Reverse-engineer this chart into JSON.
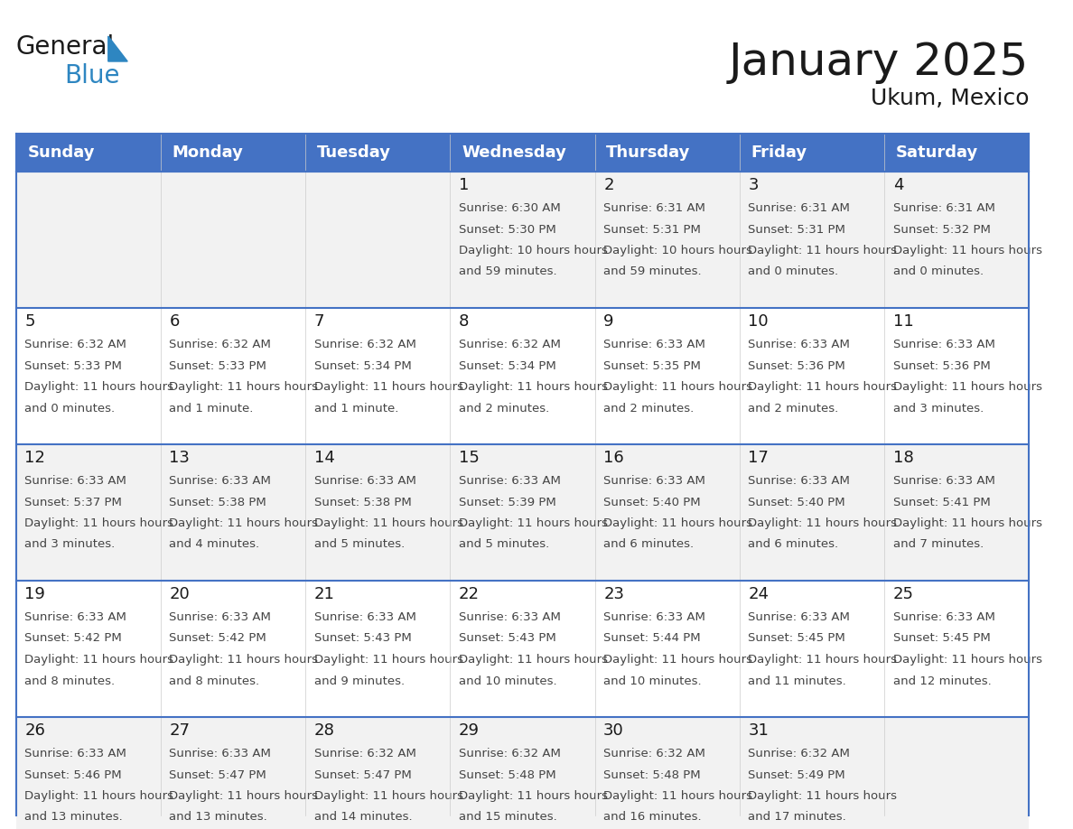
{
  "title": "January 2025",
  "subtitle": "Ukum, Mexico",
  "header_bg": "#4472C4",
  "header_text_color": "#FFFFFF",
  "days_of_week": [
    "Sunday",
    "Monday",
    "Tuesday",
    "Wednesday",
    "Thursday",
    "Friday",
    "Saturday"
  ],
  "row_bg_even": "#F2F2F2",
  "row_bg_odd": "#FFFFFF",
  "text_color": "#333333",
  "day_num_color": "#1a1a1a",
  "grid_line_color": "#4472C4",
  "logo_general_color": "#1a1a1a",
  "logo_blue_color": "#2E86C1",
  "logo_triangle_color": "#2E86C1",
  "weeks": [
    {
      "days": [
        {
          "day": null,
          "sunrise": null,
          "sunset": null,
          "daylight": null
        },
        {
          "day": null,
          "sunrise": null,
          "sunset": null,
          "daylight": null
        },
        {
          "day": null,
          "sunrise": null,
          "sunset": null,
          "daylight": null
        },
        {
          "day": 1,
          "sunrise": "6:30 AM",
          "sunset": "5:30 PM",
          "daylight": "10 hours and 59 minutes."
        },
        {
          "day": 2,
          "sunrise": "6:31 AM",
          "sunset": "5:31 PM",
          "daylight": "10 hours and 59 minutes."
        },
        {
          "day": 3,
          "sunrise": "6:31 AM",
          "sunset": "5:31 PM",
          "daylight": "11 hours and 0 minutes."
        },
        {
          "day": 4,
          "sunrise": "6:31 AM",
          "sunset": "5:32 PM",
          "daylight": "11 hours and 0 minutes."
        }
      ]
    },
    {
      "days": [
        {
          "day": 5,
          "sunrise": "6:32 AM",
          "sunset": "5:33 PM",
          "daylight": "11 hours and 0 minutes."
        },
        {
          "day": 6,
          "sunrise": "6:32 AM",
          "sunset": "5:33 PM",
          "daylight": "11 hours and 1 minute."
        },
        {
          "day": 7,
          "sunrise": "6:32 AM",
          "sunset": "5:34 PM",
          "daylight": "11 hours and 1 minute."
        },
        {
          "day": 8,
          "sunrise": "6:32 AM",
          "sunset": "5:34 PM",
          "daylight": "11 hours and 2 minutes."
        },
        {
          "day": 9,
          "sunrise": "6:33 AM",
          "sunset": "5:35 PM",
          "daylight": "11 hours and 2 minutes."
        },
        {
          "day": 10,
          "sunrise": "6:33 AM",
          "sunset": "5:36 PM",
          "daylight": "11 hours and 2 minutes."
        },
        {
          "day": 11,
          "sunrise": "6:33 AM",
          "sunset": "5:36 PM",
          "daylight": "11 hours and 3 minutes."
        }
      ]
    },
    {
      "days": [
        {
          "day": 12,
          "sunrise": "6:33 AM",
          "sunset": "5:37 PM",
          "daylight": "11 hours and 3 minutes."
        },
        {
          "day": 13,
          "sunrise": "6:33 AM",
          "sunset": "5:38 PM",
          "daylight": "11 hours and 4 minutes."
        },
        {
          "day": 14,
          "sunrise": "6:33 AM",
          "sunset": "5:38 PM",
          "daylight": "11 hours and 5 minutes."
        },
        {
          "day": 15,
          "sunrise": "6:33 AM",
          "sunset": "5:39 PM",
          "daylight": "11 hours and 5 minutes."
        },
        {
          "day": 16,
          "sunrise": "6:33 AM",
          "sunset": "5:40 PM",
          "daylight": "11 hours and 6 minutes."
        },
        {
          "day": 17,
          "sunrise": "6:33 AM",
          "sunset": "5:40 PM",
          "daylight": "11 hours and 6 minutes."
        },
        {
          "day": 18,
          "sunrise": "6:33 AM",
          "sunset": "5:41 PM",
          "daylight": "11 hours and 7 minutes."
        }
      ]
    },
    {
      "days": [
        {
          "day": 19,
          "sunrise": "6:33 AM",
          "sunset": "5:42 PM",
          "daylight": "11 hours and 8 minutes."
        },
        {
          "day": 20,
          "sunrise": "6:33 AM",
          "sunset": "5:42 PM",
          "daylight": "11 hours and 8 minutes."
        },
        {
          "day": 21,
          "sunrise": "6:33 AM",
          "sunset": "5:43 PM",
          "daylight": "11 hours and 9 minutes."
        },
        {
          "day": 22,
          "sunrise": "6:33 AM",
          "sunset": "5:43 PM",
          "daylight": "11 hours and 10 minutes."
        },
        {
          "day": 23,
          "sunrise": "6:33 AM",
          "sunset": "5:44 PM",
          "daylight": "11 hours and 10 minutes."
        },
        {
          "day": 24,
          "sunrise": "6:33 AM",
          "sunset": "5:45 PM",
          "daylight": "11 hours and 11 minutes."
        },
        {
          "day": 25,
          "sunrise": "6:33 AM",
          "sunset": "5:45 PM",
          "daylight": "11 hours and 12 minutes."
        }
      ]
    },
    {
      "days": [
        {
          "day": 26,
          "sunrise": "6:33 AM",
          "sunset": "5:46 PM",
          "daylight": "11 hours and 13 minutes."
        },
        {
          "day": 27,
          "sunrise": "6:33 AM",
          "sunset": "5:47 PM",
          "daylight": "11 hours and 13 minutes."
        },
        {
          "day": 28,
          "sunrise": "6:32 AM",
          "sunset": "5:47 PM",
          "daylight": "11 hours and 14 minutes."
        },
        {
          "day": 29,
          "sunrise": "6:32 AM",
          "sunset": "5:48 PM",
          "daylight": "11 hours and 15 minutes."
        },
        {
          "day": 30,
          "sunrise": "6:32 AM",
          "sunset": "5:48 PM",
          "daylight": "11 hours and 16 minutes."
        },
        {
          "day": 31,
          "sunrise": "6:32 AM",
          "sunset": "5:49 PM",
          "daylight": "11 hours and 17 minutes."
        },
        {
          "day": null,
          "sunrise": null,
          "sunset": null,
          "daylight": null
        }
      ]
    }
  ]
}
